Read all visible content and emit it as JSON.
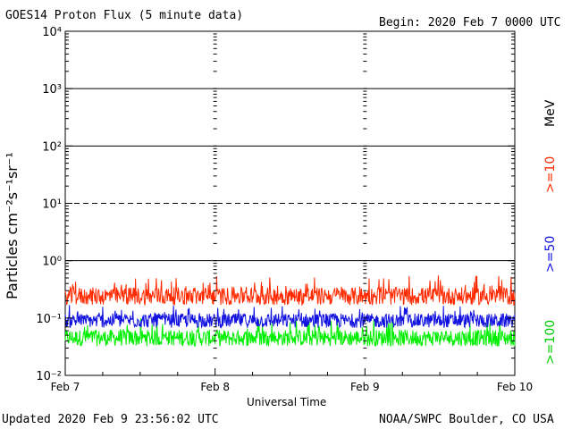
{
  "header": {
    "title": "GOES14 Proton Flux (5 minute data)",
    "begin": "Begin: 2020 Feb 7 0000 UTC"
  },
  "footer": {
    "updated": "Updated 2020 Feb  9 23:56:02 UTC",
    "source": "NOAA/SWPC Boulder, CO USA"
  },
  "chart_data": {
    "type": "line",
    "title": "GOES14 Proton Flux (5 minute data)",
    "xlabel": "Universal Time",
    "ylabel": "Particles cm⁻²s⁻¹sr⁻¹",
    "y_scale": "log",
    "ylim": [
      0.01,
      10000
    ],
    "y_ticks": [
      {
        "value": 10000,
        "label": "10⁴"
      },
      {
        "value": 1000,
        "label": "10³"
      },
      {
        "value": 100,
        "label": "10²"
      },
      {
        "value": 10,
        "label": "10¹"
      },
      {
        "value": 1,
        "label": "10⁰"
      },
      {
        "value": 0.1,
        "label": "10⁻¹"
      },
      {
        "value": 0.01,
        "label": "10⁻²"
      }
    ],
    "x_ticks": [
      "Feb 7",
      "Feb 8",
      "Feb 9",
      "Feb 10"
    ],
    "xlim_days": [
      0,
      3
    ],
    "threshold_lines": [
      {
        "value": 1000,
        "style": "solid"
      },
      {
        "value": 100,
        "style": "solid"
      },
      {
        "value": 10,
        "style": "dashed"
      },
      {
        "value": 1,
        "style": "solid"
      }
    ],
    "energy_unit": "MeV",
    "series": [
      {
        "name": ">=10",
        "color": "#ff2a00",
        "baseline": 0.24,
        "range": [
          0.15,
          0.55
        ]
      },
      {
        "name": ">=50",
        "color": "#1010e0",
        "baseline": 0.09,
        "range": [
          0.06,
          0.17
        ]
      },
      {
        "name": ">=100",
        "color": "#00ee00",
        "baseline": 0.045,
        "range": [
          0.03,
          0.1
        ]
      }
    ]
  }
}
